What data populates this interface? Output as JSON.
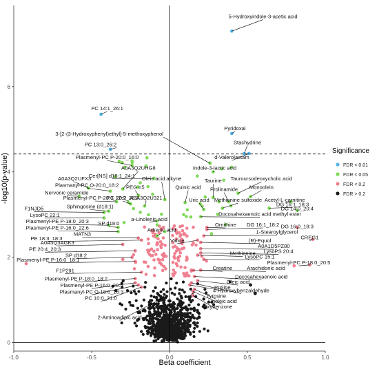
{
  "chart_data": {
    "type": "scatter",
    "xlabel": "Beta coefficient",
    "ylabel": "-log10(p-value)",
    "xlim": [
      -1.0,
      1.0
    ],
    "ylim": [
      -0.2,
      7.9
    ],
    "x_ticks": [
      -1.0,
      -0.5,
      0.0,
      0.5,
      1.0
    ],
    "x_tick_labels": [
      "-1.0",
      "-0.5",
      "0.0",
      "0.5",
      "1.0"
    ],
    "y_ticks": [
      0,
      2,
      4,
      6
    ],
    "y_tick_labels": [
      "0",
      "2",
      "4",
      "6"
    ],
    "threshold_line_y": 4.42,
    "zero_line_x": 0.0,
    "grid": false,
    "legend": {
      "title": "Significance",
      "position": "right",
      "entries": [
        {
          "label": "FDR < 0.01",
          "color": "#56B4E9"
        },
        {
          "label": "FDR < 0.05",
          "color": "#7ED957"
        },
        {
          "label": "FDR < 0.2",
          "color": "#F08090"
        },
        {
          "label": "FDR > 0.2",
          "color": "#1a1a1a"
        }
      ]
    },
    "annotated_points": [
      {
        "label": "5-Hydroxyindole-3-acetic acid",
        "x": 0.4,
        "y": 7.3,
        "group": 0,
        "lx": 0.6,
        "ly": 7.6,
        "anchor": "middle"
      },
      {
        "label": "PC 14:1_26:1",
        "x": -0.44,
        "y": 5.35,
        "group": 0,
        "lx": -0.4,
        "ly": 5.45,
        "anchor": "middle"
      },
      {
        "label": "Pyridoxal",
        "x": 0.4,
        "y": 4.9,
        "group": 0,
        "lx": 0.42,
        "ly": 4.98,
        "anchor": "middle"
      },
      {
        "label": "3-[2-(3-Hydroxyphenyl)ethyl]-5-methoxyphenol",
        "x": 0.26,
        "y": 4.2,
        "group": 1,
        "lx": -0.04,
        "ly": 4.85,
        "anchor": "end"
      },
      {
        "label": "Stachydrine",
        "x": 0.48,
        "y": 4.43,
        "group": 0,
        "lx": 0.5,
        "ly": 4.65,
        "anchor": "middle"
      },
      {
        "label": "PC 13:0_26:2",
        "x": -0.38,
        "y": 4.53,
        "group": 0,
        "lx": -0.34,
        "ly": 4.6,
        "anchor": "end"
      },
      {
        "label": "d-Valerolactam",
        "x": 0.51,
        "y": 4.43,
        "group": 0,
        "lx": 0.4,
        "ly": 4.3,
        "anchor": "middle"
      },
      {
        "label": "Plasmenyl-PC P-20:0_16:0",
        "x": -0.24,
        "y": 4.15,
        "group": 1,
        "lx": -0.4,
        "ly": 4.3,
        "anchor": "middle"
      },
      {
        "label": "Indole-3-lactic acid",
        "x": 0.28,
        "y": 4.0,
        "group": 1,
        "lx": 0.29,
        "ly": 4.05,
        "anchor": "middle"
      },
      {
        "label": "A0A3Q2UHG8",
        "x": -0.3,
        "y": 3.6,
        "group": 1,
        "lx": -0.2,
        "ly": 4.05,
        "anchor": "middle"
      },
      {
        "label": "Cer[NS] d18:1_24:1",
        "x": -0.1,
        "y": 3.85,
        "group": 1,
        "lx": -0.37,
        "ly": 3.87,
        "anchor": "middle"
      },
      {
        "label": "A0A3Q2UFX3",
        "x": -0.52,
        "y": 3.62,
        "group": 1,
        "lx": -0.61,
        "ly": 3.8,
        "anchor": "middle"
      },
      {
        "label": "Tauroursodeoxycholic acid",
        "x": 0.44,
        "y": 3.5,
        "group": 1,
        "lx": 0.59,
        "ly": 3.8,
        "anchor": "middle"
      },
      {
        "label": "Oleic acid alkyne",
        "x": -0.03,
        "y": 3.35,
        "group": 1,
        "lx": -0.05,
        "ly": 3.8,
        "anchor": "middle"
      },
      {
        "label": "Taurine",
        "x": 0.28,
        "y": 3.4,
        "group": 1,
        "lx": 0.28,
        "ly": 3.75,
        "anchor": "middle"
      },
      {
        "label": "Plasmanyl-PC O-20:0_18:2",
        "x": -0.38,
        "y": 3.55,
        "group": 1,
        "lx": -0.53,
        "ly": 3.65,
        "anchor": "middle"
      },
      {
        "label": "PEG n5",
        "x": -0.2,
        "y": 3.45,
        "group": 1,
        "lx": -0.22,
        "ly": 3.6,
        "anchor": "middle"
      },
      {
        "label": "Quinic acid",
        "x": 0.1,
        "y": 3.28,
        "group": 1,
        "lx": 0.12,
        "ly": 3.6,
        "anchor": "middle"
      },
      {
        "label": "Monoolein",
        "x": 0.52,
        "y": 3.42,
        "group": 1,
        "lx": 0.59,
        "ly": 3.6,
        "anchor": "middle"
      },
      {
        "label": "Nervonic ceramide",
        "x": -0.58,
        "y": 3.43,
        "group": 1,
        "lx": -0.66,
        "ly": 3.47,
        "anchor": "middle"
      },
      {
        "label": "Prolinamide",
        "x": 0.38,
        "y": 3.3,
        "group": 1,
        "lx": 0.35,
        "ly": 3.55,
        "anchor": "middle"
      },
      {
        "label": "Plasmenyl-PC P-20:0_20:2",
        "x": -0.34,
        "y": 3.3,
        "group": 1,
        "lx": -0.48,
        "ly": 3.35,
        "anchor": "middle"
      },
      {
        "label": "PC 12:0_26:2",
        "x": -0.25,
        "y": 3.25,
        "group": 1,
        "lx": -0.3,
        "ly": 3.35,
        "anchor": "middle"
      },
      {
        "label": "A0A3Q2U321",
        "x": -0.16,
        "y": 3.2,
        "group": 1,
        "lx": -0.15,
        "ly": 3.35,
        "anchor": "middle"
      },
      {
        "label": "Methionine sulfoxide",
        "x": 0.34,
        "y": 3.15,
        "group": 1,
        "lx": 0.44,
        "ly": 3.3,
        "anchor": "middle"
      },
      {
        "label": "Uric acid",
        "x": 0.22,
        "y": 3.12,
        "group": 1,
        "lx": 0.19,
        "ly": 3.3,
        "anchor": "middle"
      },
      {
        "label": "Acetyl-L-carnitine",
        "x": 0.78,
        "y": 3.3,
        "group": 1,
        "lx": 0.74,
        "ly": 3.3,
        "anchor": "middle"
      },
      {
        "label": "DG 16:1_18:3",
        "x": 0.64,
        "y": 3.15,
        "group": 1,
        "lx": 0.79,
        "ly": 3.2,
        "anchor": "middle"
      },
      {
        "label": "F1NJD5",
        "x": -0.42,
        "y": 3.05,
        "group": 1,
        "lx": -0.87,
        "ly": 3.1,
        "anchor": "middle"
      },
      {
        "label": "Sphingosine (d18:1)",
        "x": -0.39,
        "y": 3.08,
        "group": 1,
        "lx": -0.51,
        "ly": 3.15,
        "anchor": "middle"
      },
      {
        "label": "DG 14:0_20:4",
        "x": 0.82,
        "y": 3.1,
        "group": 1,
        "lx": 0.82,
        "ly": 3.1,
        "anchor": "middle"
      },
      {
        "label": "Docosahexaenoic acid methyl ester",
        "x": 0.2,
        "y": 2.95,
        "group": 1,
        "lx": 0.58,
        "ly": 2.97,
        "anchor": "middle"
      },
      {
        "label": "LysoPC 22:1",
        "x": -0.42,
        "y": 2.92,
        "group": 1,
        "lx": -0.8,
        "ly": 2.95,
        "anchor": "middle"
      },
      {
        "label": "a-Linolenic acid",
        "x": -0.08,
        "y": 2.85,
        "group": 1,
        "lx": -0.13,
        "ly": 2.85,
        "anchor": "middle"
      },
      {
        "label": "Plasmenyl-PE P-18:0_20:3",
        "x": -0.39,
        "y": 2.75,
        "group": 1,
        "lx": -0.72,
        "ly": 2.8,
        "anchor": "middle"
      },
      {
        "label": "SP d18:0",
        "x": -0.33,
        "y": 2.7,
        "group": 1,
        "lx": -0.39,
        "ly": 2.75,
        "anchor": "middle"
      },
      {
        "label": "Ornithine",
        "x": 0.24,
        "y": 2.7,
        "group": 2,
        "lx": 0.36,
        "ly": 2.72,
        "anchor": "middle"
      },
      {
        "label": "DG 16:1_18:2",
        "x": 0.24,
        "y": 2.65,
        "group": 2,
        "lx": 0.6,
        "ly": 2.72,
        "anchor": "middle"
      },
      {
        "label": "DG 16:0_18:3",
        "x": 0.82,
        "y": 2.7,
        "group": 2,
        "lx": 0.82,
        "ly": 2.68,
        "anchor": "middle"
      },
      {
        "label": "Plasmenyl-PE P-16:0_22:6",
        "x": -0.33,
        "y": 2.6,
        "group": 1,
        "lx": -0.72,
        "ly": 2.65,
        "anchor": "middle"
      },
      {
        "label": "Adrenic acid",
        "x": -0.08,
        "y": 2.5,
        "group": 1,
        "lx": -0.05,
        "ly": 2.6,
        "anchor": "middle"
      },
      {
        "label": "1-Stearoylglycerol",
        "x": 0.22,
        "y": 2.5,
        "group": 2,
        "lx": 0.69,
        "ly": 2.55,
        "anchor": "middle"
      },
      {
        "label": "MATN3",
        "x": -0.2,
        "y": 2.45,
        "group": 2,
        "lx": -0.56,
        "ly": 2.5,
        "anchor": "middle"
      },
      {
        "label": "CREG1",
        "x": 0.92,
        "y": 2.42,
        "group": 2,
        "lx": 0.9,
        "ly": 2.42,
        "anchor": "middle"
      },
      {
        "label": "PE 18:3_18:3",
        "x": -0.18,
        "y": 2.4,
        "group": 2,
        "lx": -0.79,
        "ly": 2.4,
        "anchor": "middle"
      },
      {
        "label": "Valine",
        "x": 0.18,
        "y": 2.4,
        "group": 2,
        "lx": 0.05,
        "ly": 2.35,
        "anchor": "middle"
      },
      {
        "label": "(R)-Equol",
        "x": 0.2,
        "y": 2.35,
        "group": 2,
        "lx": 0.58,
        "ly": 2.35,
        "anchor": "middle"
      },
      {
        "label": "A0A3Q3AGK3",
        "x": -0.3,
        "y": 2.3,
        "group": 2,
        "lx": -0.72,
        "ly": 2.3,
        "anchor": "middle"
      },
      {
        "label": "A0A1D5PZ80",
        "x": 0.2,
        "y": 2.2,
        "group": 2,
        "lx": 0.67,
        "ly": 2.22,
        "anchor": "middle"
      },
      {
        "label": "PE 20:4_20:3",
        "x": -0.22,
        "y": 2.15,
        "group": 2,
        "lx": -0.8,
        "ly": 2.15,
        "anchor": "middle"
      },
      {
        "label": "LysoPS 20:4",
        "x": 0.2,
        "y": 2.1,
        "group": 2,
        "lx": 0.7,
        "ly": 2.1,
        "anchor": "middle"
      },
      {
        "label": "Methionine",
        "x": 0.18,
        "y": 2.05,
        "group": 2,
        "lx": 0.47,
        "ly": 2.05,
        "anchor": "middle"
      },
      {
        "label": "SP d18:2",
        "x": -0.24,
        "y": 2.0,
        "group": 2,
        "lx": -0.6,
        "ly": 2.0,
        "anchor": "middle"
      },
      {
        "label": "LysoPC 15:1",
        "x": 0.22,
        "y": 1.95,
        "group": 2,
        "lx": 0.58,
        "ly": 1.97,
        "anchor": "middle"
      },
      {
        "label": "Plasmenyl-PE P-16:0_18:1",
        "x": -0.22,
        "y": 1.9,
        "group": 2,
        "lx": -0.78,
        "ly": 1.9,
        "anchor": "middle"
      },
      {
        "label": "Plasmenyl-PC P-18:0_20:5",
        "x": 0.9,
        "y": 1.82,
        "group": 2,
        "lx": 0.83,
        "ly": 1.83,
        "anchor": "middle"
      },
      {
        "label": "Creatine",
        "x": 0.14,
        "y": 1.7,
        "group": 2,
        "lx": 0.34,
        "ly": 1.7,
        "anchor": "middle"
      },
      {
        "label": "Arachidonic acid",
        "x": 0.2,
        "y": 1.7,
        "group": 2,
        "lx": 0.62,
        "ly": 1.7,
        "anchor": "middle"
      },
      {
        "label": "F1P291",
        "x": -0.18,
        "y": 1.65,
        "group": 2,
        "lx": -0.67,
        "ly": 1.65,
        "anchor": "middle"
      },
      {
        "label": "Docosahexaenoic acid",
        "x": 0.16,
        "y": 1.55,
        "group": 2,
        "lx": 0.59,
        "ly": 1.5,
        "anchor": "middle"
      },
      {
        "label": "Plasmenyl-PE P-18:0_18:2",
        "x": -0.22,
        "y": 1.5,
        "group": 2,
        "lx": -0.6,
        "ly": 1.45,
        "anchor": "middle"
      },
      {
        "label": "Oleic acid",
        "x": 0.18,
        "y": 1.45,
        "group": 2,
        "lx": 0.44,
        "ly": 1.38,
        "anchor": "middle"
      },
      {
        "label": "Plasmenyl-PE P-16:0_20:5",
        "x": -0.22,
        "y": 1.4,
        "group": 2,
        "lx": -0.5,
        "ly": 1.3,
        "anchor": "middle"
      },
      {
        "label": "Proline",
        "x": 0.13,
        "y": 1.35,
        "group": 2,
        "lx": 0.34,
        "ly": 1.25,
        "anchor": "middle"
      },
      {
        "label": "Plasmanyl-PC O-18:0_18:3",
        "x": -0.2,
        "y": 1.35,
        "group": 2,
        "lx": -0.5,
        "ly": 1.15,
        "anchor": "middle"
      },
      {
        "label": "4-Hydroxybenzaldehyde",
        "x": 0.14,
        "y": 1.4,
        "group": 2,
        "lx": 0.46,
        "ly": 1.18,
        "anchor": "middle"
      },
      {
        "label": "Tyrosine",
        "x": 0.16,
        "y": 1.25,
        "group": 2,
        "lx": 0.3,
        "ly": 1.05,
        "anchor": "middle"
      },
      {
        "label": "PC 10:0_21:0",
        "x": -0.18,
        "y": 1.3,
        "group": 2,
        "lx": -0.44,
        "ly": 1.0,
        "anchor": "middle"
      },
      {
        "label": "Linoleic acid",
        "x": 0.15,
        "y": 1.2,
        "group": 2,
        "lx": 0.34,
        "ly": 0.93,
        "anchor": "middle"
      },
      {
        "label": "Oxybenzone",
        "x": 0.15,
        "y": 1.1,
        "group": 2,
        "lx": 0.31,
        "ly": 0.8,
        "anchor": "middle"
      },
      {
        "label": "2-Aminoadipic acid",
        "x": -0.04,
        "y": 1.05,
        "group": 3,
        "lx": -0.32,
        "ly": 0.55,
        "anchor": "middle"
      }
    ],
    "extra_points": [
      {
        "x": -0.92,
        "y": 1.85,
        "group": 2
      },
      {
        "x": -0.3,
        "y": 1.95,
        "group": 2
      },
      {
        "x": 0.8,
        "y": 1.8,
        "group": 2
      },
      {
        "x": 0.52,
        "y": 1.35,
        "group": 3
      },
      {
        "x": 0.55,
        "y": 1.15,
        "group": 3
      },
      {
        "x": -0.03,
        "y": 2.6,
        "group": 1
      },
      {
        "x": 0.27,
        "y": 2.55,
        "group": 1
      }
    ]
  }
}
